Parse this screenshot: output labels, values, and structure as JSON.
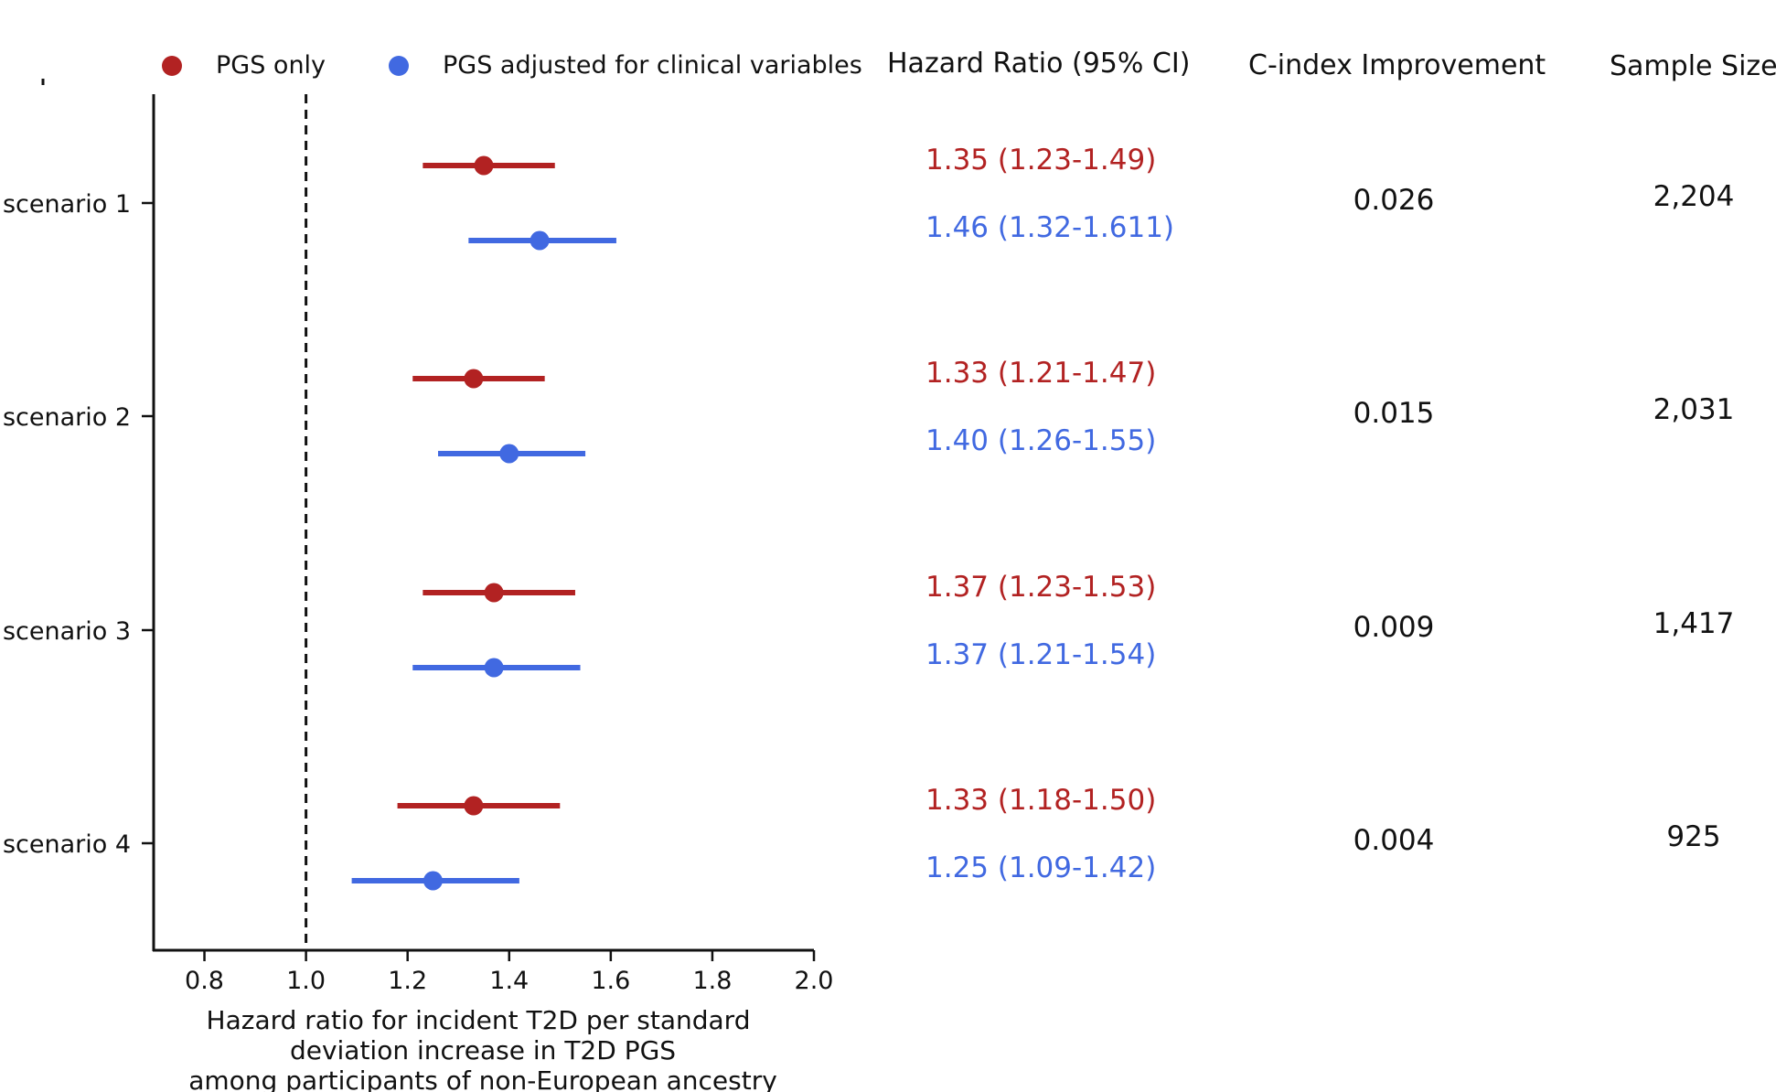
{
  "chart_data": {
    "type": "forest",
    "legend": [
      {
        "label": "PGS only",
        "color": "#b22222"
      },
      {
        "label": "PGS adjusted for clinical variables",
        "color": "#4169e1"
      }
    ],
    "legend_position": "top",
    "xlabel_lines": [
      "Hazard ratio for incident T2D per standard",
      "deviation increase in T2D PGS",
      "among participants of non-European ancestry"
    ],
    "xlim": [
      0.7,
      2.0
    ],
    "xticks": [
      0.8,
      1.0,
      1.2,
      1.4,
      1.6,
      1.8,
      2.0
    ],
    "xtick_labels": [
      "0.8",
      "1.0",
      "1.2",
      "1.4",
      "1.6",
      "1.8",
      "2.0"
    ],
    "reference_line": 1.0,
    "columns": {
      "hr": "Hazard Ratio (95% CI)",
      "cindex": "C-index Improvement",
      "n": "Sample Size"
    },
    "rows": [
      {
        "label": "scenario 1",
        "pgs_only": {
          "hr": 1.35,
          "lo": 1.23,
          "hi": 1.49,
          "text": "1.35 (1.23-1.49)"
        },
        "adjusted": {
          "hr": 1.46,
          "lo": 1.32,
          "hi": 1.611,
          "text": "1.46 (1.32-1.611)"
        },
        "cindex": "0.026",
        "n": "2,204"
      },
      {
        "label": "scenario 2",
        "pgs_only": {
          "hr": 1.33,
          "lo": 1.21,
          "hi": 1.47,
          "text": "1.33 (1.21-1.47)"
        },
        "adjusted": {
          "hr": 1.4,
          "lo": 1.26,
          "hi": 1.55,
          "text": "1.40 (1.26-1.55)"
        },
        "cindex": "0.015",
        "n": "2,031"
      },
      {
        "label": "scenario 3",
        "pgs_only": {
          "hr": 1.37,
          "lo": 1.23,
          "hi": 1.53,
          "text": "1.37 (1.23-1.53)"
        },
        "adjusted": {
          "hr": 1.37,
          "lo": 1.21,
          "hi": 1.54,
          "text": "1.37 (1.21-1.54)"
        },
        "cindex": "0.009",
        "n": "1,417"
      },
      {
        "label": "scenario 4",
        "pgs_only": {
          "hr": 1.33,
          "lo": 1.18,
          "hi": 1.5,
          "text": "1.33 (1.18-1.50)"
        },
        "adjusted": {
          "hr": 1.25,
          "lo": 1.09,
          "hi": 1.42,
          "text": "1.25 (1.09-1.42)"
        },
        "cindex": "0.004",
        "n": "925"
      }
    ]
  }
}
